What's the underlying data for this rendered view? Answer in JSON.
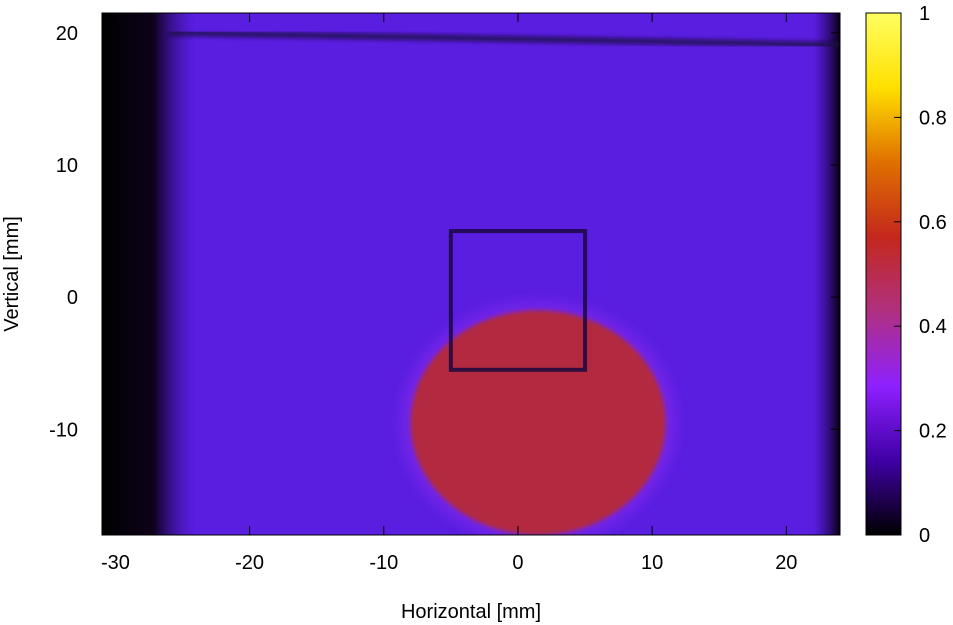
{
  "chart_data": {
    "type": "heatmap",
    "title": "",
    "xlabel": "Horizontal [mm]",
    "ylabel": "Vertical [mm]",
    "xlim": [
      -31,
      24
    ],
    "ylim": [
      -18,
      21.5
    ],
    "xticks": [
      -30,
      -20,
      -10,
      0,
      10,
      20
    ],
    "yticks": [
      -10,
      0,
      10,
      20
    ],
    "colorbar": {
      "range": [
        0,
        1
      ],
      "ticks": [
        0,
        0.2,
        0.4,
        0.6,
        0.8,
        1
      ],
      "colors": [
        "#000000",
        "#3f00a6",
        "#8e20ff",
        "#b03080",
        "#c4281c",
        "#e07000",
        "#ffe000",
        "#ffff60"
      ]
    },
    "grid_lines": {
      "vertical_x": [
        -24.5,
        -20,
        -10,
        0,
        9.5,
        19
      ],
      "horizontal_y": [
        -10.5,
        0,
        10,
        20
      ]
    },
    "features": {
      "background_intensity": 0.25,
      "hot_region": {
        "center": [
          1.5,
          -9.5
        ],
        "radius_x": 9.5,
        "radius_y": 8.5,
        "intensity": 0.48
      },
      "dark_left_edge_x": [
        -31,
        -26
      ],
      "inner_square": {
        "x": [
          -5,
          5
        ],
        "y": [
          -5.5,
          5
        ]
      }
    }
  }
}
